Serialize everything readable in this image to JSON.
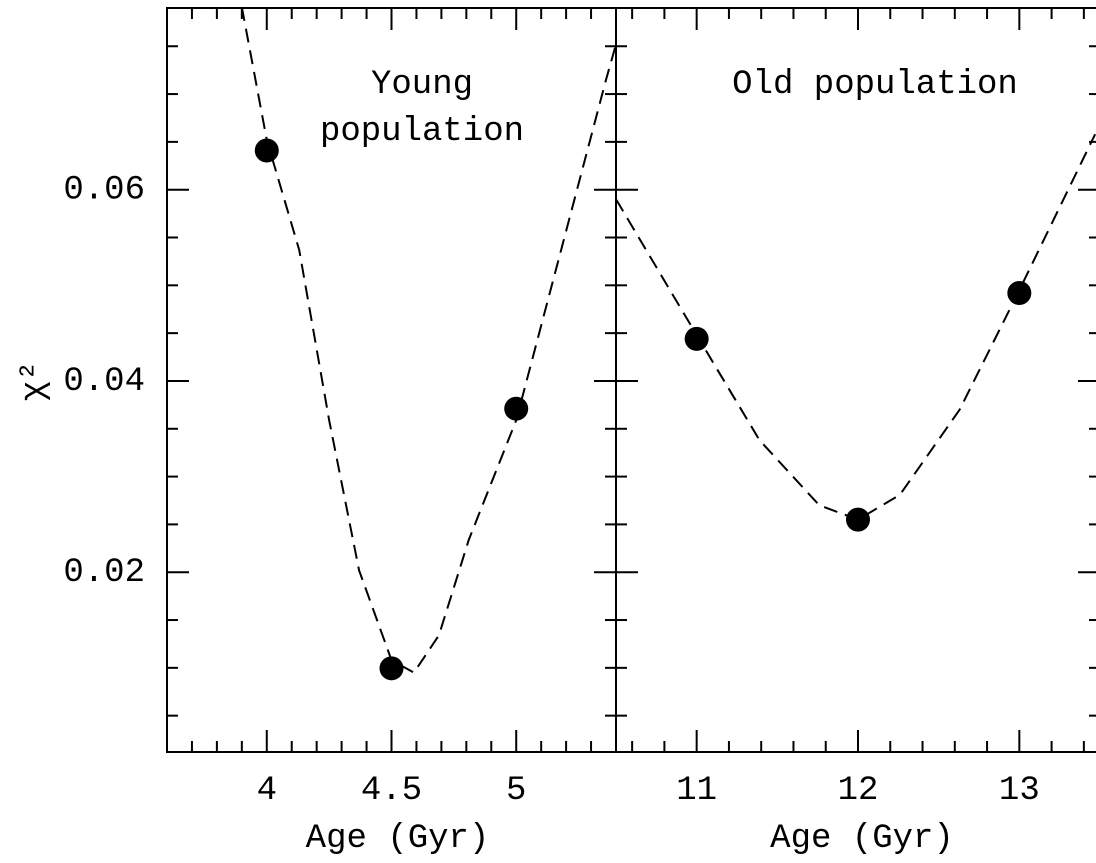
{
  "chart_data": [
    {
      "type": "scatter",
      "annotation": [
        "Young",
        "population"
      ],
      "xlabel": "Age (Gyr)",
      "ylabel": "χ²",
      "xlim": [
        3.6,
        5.4
      ],
      "ylim": [
        0.0012,
        0.079
      ],
      "xticks": [
        4,
        4.5,
        5
      ],
      "x_minor_ticks": [
        3.7,
        3.8,
        3.9,
        4.1,
        4.2,
        4.3,
        4.4,
        4.6,
        4.7,
        4.8,
        4.9,
        5.1,
        5.2,
        5.3
      ],
      "yticks": [
        0.02,
        0.04,
        0.06
      ],
      "y_minor_ticks": [
        0.005,
        0.01,
        0.015,
        0.025,
        0.03,
        0.035,
        0.045,
        0.05,
        0.055,
        0.065,
        0.07,
        0.075
      ],
      "series": [
        {
          "type": "scatter",
          "color": "#000000",
          "x": [
            4,
            4.5,
            5
          ],
          "values": [
            0.0641,
            0.00995,
            0.0371
          ]
        },
        {
          "type": "line",
          "style": "dashed",
          "color": "#000000",
          "x": [
            3.9,
            4.0,
            4.13,
            4.25,
            4.37,
            4.5,
            4.59,
            4.69,
            4.81,
            5.0,
            5.18,
            5.36,
            5.4
          ],
          "values": [
            0.0791,
            0.0652,
            0.0537,
            0.0359,
            0.0202,
            0.0108,
            0.0095,
            0.0134,
            0.0234,
            0.0359,
            0.0537,
            0.0715,
            0.0752
          ]
        }
      ]
    },
    {
      "type": "scatter",
      "annotation": [
        "Old population"
      ],
      "xlabel": "Age (Gyr)",
      "xlim": [
        10.5,
        13.5
      ],
      "ylim": [
        0.0012,
        0.079
      ],
      "xticks": [
        11,
        12,
        13
      ],
      "x_minor_ticks": [
        10.6,
        10.8,
        11.2,
        11.4,
        11.6,
        11.8,
        12.2,
        12.4,
        12.6,
        12.8,
        13.2,
        13.4
      ],
      "yticks": [
        0.02,
        0.04,
        0.06
      ],
      "y_minor_ticks": [
        0.005,
        0.01,
        0.015,
        0.025,
        0.03,
        0.035,
        0.045,
        0.05,
        0.055,
        0.065,
        0.07,
        0.075
      ],
      "series": [
        {
          "type": "scatter",
          "color": "#000000",
          "x": [
            11,
            12,
            13
          ],
          "values": [
            0.0444,
            0.0255,
            0.0492
          ]
        },
        {
          "type": "line",
          "style": "dashed",
          "color": "#000000",
          "x": [
            10.5,
            11.0,
            11.39,
            11.76,
            12.0,
            12.26,
            12.63,
            13.0,
            13.47
          ],
          "values": [
            0.059,
            0.0448,
            0.0338,
            0.027,
            0.0255,
            0.0281,
            0.037,
            0.0495,
            0.0658
          ]
        }
      ]
    }
  ]
}
